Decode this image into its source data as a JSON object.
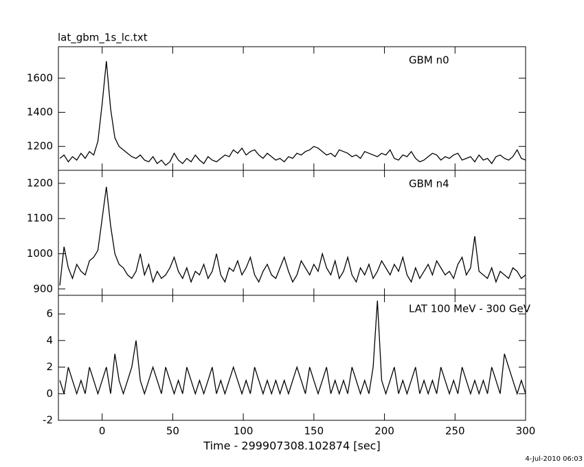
{
  "title": "lat_gbm_1s_lc.txt",
  "footer": "4-Jul-2010 06:03",
  "chart_data": [
    {
      "type": "line",
      "label": "GBM n0",
      "color": "#000000",
      "xtick_labels": false,
      "x": [
        -30,
        -27,
        -24,
        -21,
        -18,
        -15,
        -12,
        -9,
        -6,
        -3,
        0,
        3,
        6,
        9,
        12,
        15,
        18,
        21,
        24,
        27,
        30,
        33,
        36,
        39,
        42,
        45,
        48,
        51,
        54,
        57,
        60,
        63,
        66,
        69,
        72,
        75,
        78,
        81,
        84,
        87,
        90,
        93,
        96,
        99,
        102,
        105,
        108,
        111,
        114,
        117,
        120,
        123,
        126,
        129,
        132,
        135,
        138,
        141,
        144,
        147,
        150,
        153,
        156,
        159,
        162,
        165,
        168,
        171,
        174,
        177,
        180,
        183,
        186,
        189,
        192,
        195,
        198,
        201,
        204,
        207,
        210,
        213,
        216,
        219,
        222,
        225,
        228,
        231,
        234,
        237,
        240,
        243,
        246,
        249,
        252,
        255,
        258,
        261,
        264,
        267,
        270,
        273,
        276,
        279,
        282,
        285,
        288,
        291,
        294,
        297,
        300
      ],
      "values": [
        1130,
        1150,
        1110,
        1140,
        1120,
        1160,
        1130,
        1170,
        1150,
        1230,
        1450,
        1700,
        1420,
        1250,
        1200,
        1180,
        1160,
        1140,
        1130,
        1150,
        1120,
        1110,
        1140,
        1100,
        1120,
        1090,
        1110,
        1160,
        1120,
        1100,
        1130,
        1110,
        1150,
        1120,
        1100,
        1140,
        1120,
        1110,
        1130,
        1150,
        1140,
        1180,
        1160,
        1190,
        1150,
        1170,
        1180,
        1150,
        1130,
        1160,
        1140,
        1120,
        1130,
        1110,
        1140,
        1130,
        1160,
        1150,
        1170,
        1180,
        1200,
        1190,
        1170,
        1150,
        1160,
        1140,
        1180,
        1170,
        1160,
        1140,
        1150,
        1130,
        1170,
        1160,
        1150,
        1140,
        1160,
        1150,
        1180,
        1130,
        1120,
        1150,
        1140,
        1170,
        1130,
        1110,
        1120,
        1140,
        1160,
        1150,
        1120,
        1140,
        1130,
        1150,
        1160,
        1120,
        1130,
        1140,
        1110,
        1150,
        1120,
        1130,
        1100,
        1140,
        1150,
        1130,
        1120,
        1140,
        1180,
        1130,
        1120
      ],
      "xlim": [
        -31,
        300
      ],
      "xticks": [
        0,
        50,
        100,
        150,
        200,
        250,
        300
      ],
      "ylim": [
        1060,
        1785
      ],
      "yticks": [
        1200,
        1400,
        1600
      ]
    },
    {
      "type": "line",
      "label": "GBM n4",
      "color": "#000000",
      "xtick_labels": false,
      "x": [
        -30,
        -27,
        -24,
        -21,
        -18,
        -15,
        -12,
        -9,
        -6,
        -3,
        0,
        3,
        6,
        9,
        12,
        15,
        18,
        21,
        24,
        27,
        30,
        33,
        36,
        39,
        42,
        45,
        48,
        51,
        54,
        57,
        60,
        63,
        66,
        69,
        72,
        75,
        78,
        81,
        84,
        87,
        90,
        93,
        96,
        99,
        102,
        105,
        108,
        111,
        114,
        117,
        120,
        123,
        126,
        129,
        132,
        135,
        138,
        141,
        144,
        147,
        150,
        153,
        156,
        159,
        162,
        165,
        168,
        171,
        174,
        177,
        180,
        183,
        186,
        189,
        192,
        195,
        198,
        201,
        204,
        207,
        210,
        213,
        216,
        219,
        222,
        225,
        228,
        231,
        234,
        237,
        240,
        243,
        246,
        249,
        252,
        255,
        258,
        261,
        264,
        267,
        270,
        273,
        276,
        279,
        282,
        285,
        288,
        291,
        294,
        297,
        300
      ],
      "values": [
        910,
        1020,
        960,
        930,
        970,
        950,
        940,
        980,
        990,
        1010,
        1100,
        1190,
        1080,
        1000,
        970,
        960,
        940,
        930,
        950,
        1000,
        940,
        970,
        920,
        950,
        930,
        940,
        960,
        990,
        950,
        930,
        960,
        920,
        950,
        940,
        970,
        930,
        950,
        1000,
        940,
        920,
        960,
        950,
        980,
        940,
        960,
        990,
        940,
        920,
        950,
        970,
        940,
        930,
        960,
        990,
        950,
        920,
        940,
        980,
        960,
        940,
        970,
        950,
        1000,
        960,
        940,
        980,
        930,
        950,
        990,
        940,
        920,
        960,
        940,
        970,
        930,
        950,
        980,
        960,
        940,
        970,
        950,
        990,
        940,
        920,
        960,
        930,
        950,
        970,
        940,
        980,
        960,
        940,
        950,
        930,
        970,
        990,
        940,
        960,
        1050,
        950,
        940,
        930,
        960,
        920,
        950,
        940,
        930,
        960,
        950,
        930,
        940
      ],
      "xlim": [
        -31,
        300
      ],
      "xticks": [
        0,
        50,
        100,
        150,
        200,
        250,
        300
      ],
      "ylim": [
        882,
        1237
      ],
      "yticks": [
        900,
        1000,
        1100,
        1200
      ]
    },
    {
      "type": "line",
      "label": "LAT 100 MeV - 300 GeV",
      "color": "#000000",
      "xtick_labels": true,
      "xlabel": "Time - 299907308.102874 [sec]",
      "x": [
        -30,
        -27,
        -24,
        -21,
        -18,
        -15,
        -12,
        -9,
        -6,
        -3,
        0,
        3,
        6,
        9,
        12,
        15,
        18,
        21,
        24,
        27,
        30,
        33,
        36,
        39,
        42,
        45,
        48,
        51,
        54,
        57,
        60,
        63,
        66,
        69,
        72,
        75,
        78,
        81,
        84,
        87,
        90,
        93,
        96,
        99,
        102,
        105,
        108,
        111,
        114,
        117,
        120,
        123,
        126,
        129,
        132,
        135,
        138,
        141,
        144,
        147,
        150,
        153,
        156,
        159,
        162,
        165,
        168,
        171,
        174,
        177,
        180,
        183,
        186,
        189,
        192,
        195,
        198,
        201,
        204,
        207,
        210,
        213,
        216,
        219,
        222,
        225,
        228,
        231,
        234,
        237,
        240,
        243,
        246,
        249,
        252,
        255,
        258,
        261,
        264,
        267,
        270,
        273,
        276,
        279,
        282,
        285,
        288,
        291,
        294,
        297,
        300
      ],
      "values": [
        1,
        0,
        2,
        1,
        0,
        1,
        0,
        2,
        1,
        0,
        1,
        2,
        0,
        3,
        1,
        0,
        1,
        2,
        4,
        1,
        0,
        1,
        2,
        1,
        0,
        2,
        1,
        0,
        1,
        0,
        2,
        1,
        0,
        1,
        0,
        1,
        2,
        0,
        1,
        0,
        1,
        2,
        1,
        0,
        1,
        0,
        2,
        1,
        0,
        1,
        0,
        1,
        0,
        1,
        0,
        1,
        2,
        1,
        0,
        2,
        1,
        0,
        1,
        2,
        0,
        1,
        0,
        1,
        0,
        2,
        1,
        0,
        1,
        0,
        2,
        7,
        1,
        0,
        1,
        2,
        0,
        1,
        0,
        1,
        2,
        0,
        1,
        0,
        1,
        0,
        2,
        1,
        0,
        1,
        0,
        2,
        1,
        0,
        1,
        0,
        1,
        0,
        2,
        1,
        0,
        3,
        2,
        1,
        0,
        1,
        0
      ],
      "xlim": [
        -31,
        300
      ],
      "xticks": [
        0,
        50,
        100,
        150,
        200,
        250,
        300
      ],
      "ylim": [
        -2,
        7.4
      ],
      "yticks": [
        -2,
        0,
        2,
        4,
        6
      ]
    }
  ]
}
